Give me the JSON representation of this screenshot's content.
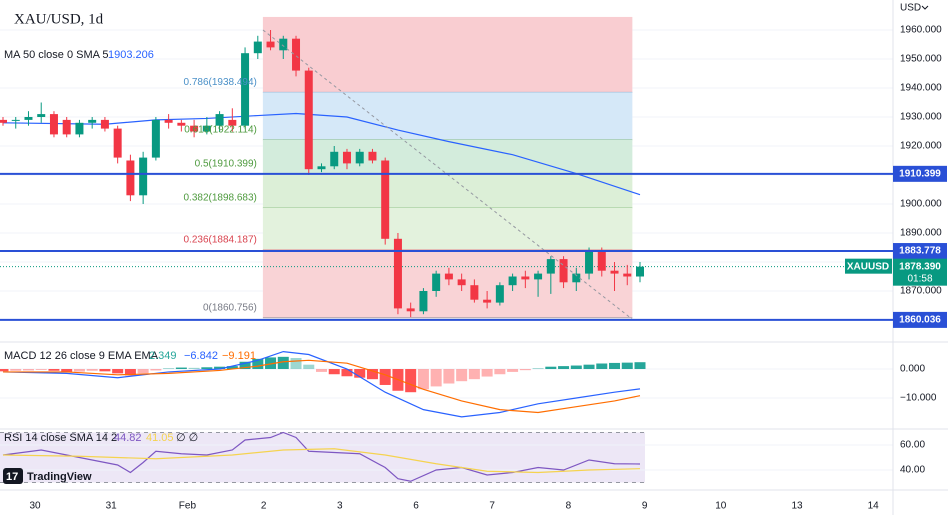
{
  "chart_data": [
    {
      "type": "candlestick",
      "title": "XAU/USD, 1d",
      "unit": "USD",
      "x_labels": [
        "30",
        "31",
        "Feb",
        "2",
        "3",
        "6",
        "7",
        "8",
        "9",
        "10",
        "13",
        "14"
      ],
      "up_color": "#089981",
      "down_color": "#f23645",
      "open": [
        1929,
        1929,
        1929,
        1930,
        1931,
        1929,
        1924,
        1928,
        1929,
        1926,
        1915,
        1903,
        1916,
        1929,
        1928,
        1927,
        1925,
        1927,
        1929,
        1927,
        1952,
        1956,
        1953,
        1957,
        1946,
        1912,
        1913,
        1918,
        1914,
        1918,
        1915,
        1888,
        1864,
        1863,
        1870,
        1876,
        1874,
        1872,
        1867,
        1866,
        1872,
        1875,
        1874,
        1876,
        1881,
        1873,
        1876,
        1884,
        1877,
        1876,
        1875
      ],
      "high": [
        1930,
        1930,
        1932,
        1935,
        1932,
        1930,
        1929,
        1930,
        1930,
        1927,
        1917,
        1918,
        1930,
        1931,
        1929,
        1929,
        1930,
        1932,
        1933,
        1954,
        1958,
        1960,
        1958,
        1958,
        1947,
        1914,
        1920,
        1919,
        1919,
        1919,
        1916,
        1890,
        1866,
        1871,
        1877,
        1878,
        1876,
        1874,
        1870,
        1873,
        1876,
        1877,
        1877,
        1882,
        1882,
        1878,
        1885,
        1885,
        1880,
        1879,
        1880
      ],
      "low": [
        1927,
        1926,
        1927,
        1928,
        1923,
        1923,
        1923,
        1926,
        1925,
        1914,
        1901,
        1900,
        1915,
        1926,
        1925,
        1923,
        1924,
        1925,
        1925,
        1926,
        1950,
        1953,
        1950,
        1944,
        1910,
        1911,
        1912,
        1912,
        1913,
        1914,
        1886,
        1862,
        1861,
        1862,
        1868,
        1872,
        1870,
        1866,
        1864,
        1865,
        1870,
        1871,
        1868,
        1869,
        1871,
        1870,
        1874,
        1875,
        1870,
        1872,
        1873
      ],
      "close": [
        1928,
        1929,
        1930,
        1931,
        1924,
        1924,
        1928,
        1929,
        1926,
        1916,
        1903,
        1916,
        1929,
        1928,
        1927,
        1925,
        1927,
        1931,
        1927,
        1952,
        1956,
        1954,
        1957,
        1946,
        1912,
        1913,
        1918,
        1914,
        1918,
        1915,
        1888,
        1864,
        1863,
        1870,
        1876,
        1874,
        1872,
        1867,
        1866,
        1872,
        1875,
        1874,
        1876,
        1881,
        1873,
        1876,
        1884,
        1877,
        1876,
        1875,
        1878.39
      ],
      "ma": {
        "name": "MA 50 close 0 SMA 5",
        "color": "#2962ff",
        "x": [
          0,
          8,
          12,
          16,
          20,
          23,
          27,
          31,
          35,
          40,
          45,
          50
        ],
        "values": [
          1928,
          1927.5,
          1929,
          1929.5,
          1930.5,
          1931.2,
          1930,
          1925.5,
          1921.5,
          1917,
          1910.5,
          1903.206
        ]
      },
      "fib": {
        "top": 1964.5,
        "x_start": 20.4,
        "x_end": 49.4,
        "levels": [
          {
            "label": "0.786(1938.494)",
            "price": 1938.494,
            "color": "#4a90c8",
            "fill": "#f9cdd1"
          },
          {
            "label": "0.618(1922.114)",
            "price": 1922.114,
            "color": "#4e9a3e",
            "fill": "#d5e8f8"
          },
          {
            "label": "0.5(1910.399)",
            "price": 1910.399,
            "color": "#4e9a3e",
            "fill": "#d3ecdc"
          },
          {
            "label": "0.382(1898.683)",
            "price": 1898.683,
            "color": "#4e9a3e",
            "fill": "#dcefd7"
          },
          {
            "label": "0.236(1884.187)",
            "price": 1884.187,
            "color": "#d9434f",
            "fill": "#e3f2dd"
          },
          {
            "label": "0(1860.756)",
            "price": 1860.756,
            "color": "#787b86",
            "fill": "#f9d3d6"
          }
        ]
      },
      "hlines": [
        1910.399,
        1883.778,
        1860.036
      ],
      "hline_color": "#2a50d6",
      "last_price": {
        "symbol": "XAUUSD",
        "value": 1878.39,
        "label": "1878.390",
        "countdown": "01:58"
      },
      "ylim": [
        1852.76,
        1970.34
      ],
      "yticks": [
        {
          "value": 1870,
          "label": "1870.000"
        },
        {
          "value": 1880,
          "label": "1880.000"
        },
        {
          "value": 1890,
          "label": "1890.000"
        },
        {
          "value": 1900,
          "label": "1900.000"
        },
        {
          "value": 1910,
          "label": "1910.000"
        },
        {
          "value": 1920,
          "label": "1920.000"
        },
        {
          "value": 1930,
          "label": "1930.000"
        },
        {
          "value": 1940,
          "label": "1940.000"
        },
        {
          "value": 1950,
          "label": "1950.000"
        },
        {
          "value": 1960,
          "label": "1960.000"
        }
      ]
    },
    {
      "type": "macd",
      "title": "MACD 12 26 close 9 EMA EMA",
      "histogram": {
        "pos_color": "#26a69a",
        "neg_color": "#ff5252",
        "values": [
          -0.8,
          -0.6,
          -0.5,
          -0.3,
          -0.6,
          -1.0,
          -0.9,
          -0.6,
          -0.8,
          -1.5,
          -2.2,
          -1.5,
          -0.5,
          0.3,
          0.5,
          0.4,
          0.6,
          0.8,
          1.0,
          2.5,
          3.5,
          4.0,
          4.2,
          3.8,
          1.5,
          -1.0,
          -1.8,
          -2.5,
          -3.0,
          -3.5,
          -5.5,
          -7.5,
          -8.0,
          -7.0,
          -6.0,
          -5.0,
          -4.2,
          -3.5,
          -2.6,
          -1.8,
          -1.0,
          -0.4,
          0.3,
          0.8,
          1.0,
          1.2,
          1.5,
          1.9,
          2.1,
          2.2,
          2.349
        ]
      },
      "series": [
        {
          "name": "MACD",
          "color": "#2962ff",
          "x": [
            0,
            5,
            9,
            13,
            17,
            20,
            22,
            24,
            27,
            30,
            33,
            36,
            39,
            42,
            45,
            48,
            50
          ],
          "values": [
            -1,
            -1.5,
            -3,
            -1,
            0,
            3,
            6,
            5,
            0,
            -8,
            -14,
            -16.5,
            -15,
            -12,
            -10,
            -8,
            -6.842
          ],
          "value_labels": [
            null,
            null,
            null,
            null,
            null,
            null,
            null,
            null,
            null,
            null,
            null,
            null,
            null,
            null,
            null,
            null,
            "−6.842"
          ]
        },
        {
          "name": "Signal",
          "color": "#ff6d00",
          "x": [
            0,
            5,
            9,
            13,
            17,
            20,
            22,
            24,
            27,
            30,
            33,
            36,
            39,
            42,
            45,
            48,
            50
          ],
          "values": [
            -1,
            -1,
            -2,
            -1.5,
            -0.5,
            1,
            2.5,
            3,
            2,
            -2,
            -7,
            -11,
            -14,
            -15,
            -13,
            -11,
            -9.191
          ],
          "value_labels": [
            null,
            null,
            null,
            null,
            null,
            null,
            null,
            null,
            null,
            null,
            null,
            null,
            null,
            null,
            null,
            null,
            "−9.191"
          ]
        }
      ],
      "ylim": [
        -20.34,
        8.97
      ],
      "yticks": [
        {
          "value": 0,
          "label": "0.000"
        },
        {
          "value": -10,
          "label": "−10.000"
        }
      ]
    },
    {
      "type": "rsi",
      "title": "RSI 14 close SMA 14 2",
      "extra": "∅ ∅",
      "band": [
        30,
        70
      ],
      "band_color": "#ede7f6",
      "series": [
        {
          "name": "RSI",
          "color": "#7e57c2",
          "x": [
            0,
            3,
            6,
            9,
            10,
            11,
            12,
            14,
            16,
            18,
            19,
            21,
            22,
            23,
            24,
            26,
            28,
            30,
            31,
            32,
            34,
            36,
            38,
            40,
            42,
            44,
            46,
            48,
            50
          ],
          "values": [
            52,
            56,
            50,
            44,
            38,
            46,
            55,
            53,
            52,
            56,
            64,
            66,
            70,
            66,
            55,
            54,
            53,
            42,
            33,
            31,
            40,
            42,
            36,
            38,
            42,
            40,
            48,
            45,
            44.82
          ]
        },
        {
          "name": "RSI-based MA",
          "color": "#f5d34f",
          "x": [
            0,
            6,
            12,
            18,
            22,
            26,
            30,
            34,
            38,
            42,
            46,
            50
          ],
          "values": [
            52,
            51,
            49,
            52,
            56,
            57,
            52,
            45,
            39,
            38,
            40,
            41.05
          ]
        }
      ],
      "ylim": [
        24,
        72
      ],
      "yticks": [
        {
          "value": 60,
          "label": "60.00"
        },
        {
          "value": 40,
          "label": "40.00"
        }
      ]
    }
  ],
  "branding": "TradingView"
}
